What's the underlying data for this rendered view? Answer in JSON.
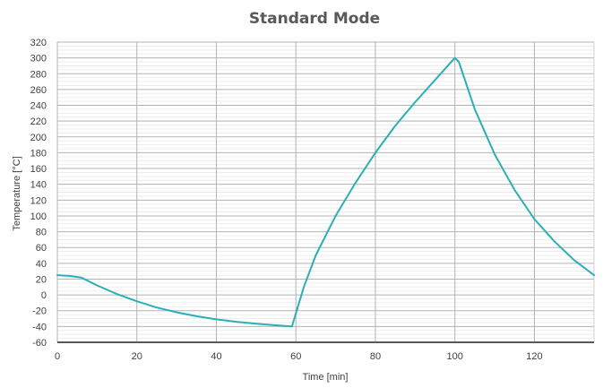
{
  "chart_data": {
    "type": "line",
    "title": "Standard Mode",
    "xlabel": "Time [min]",
    "ylabel": "Temperature [°C]",
    "xlim": [
      0,
      135
    ],
    "ylim": [
      -60,
      320
    ],
    "x_ticks": [
      0,
      20,
      40,
      60,
      80,
      100,
      120
    ],
    "y_ticks": [
      -60,
      -40,
      -20,
      0,
      20,
      40,
      60,
      80,
      100,
      120,
      140,
      160,
      180,
      200,
      220,
      240,
      260,
      280,
      300,
      320
    ],
    "grid": true,
    "legend": "none",
    "series": [
      {
        "color": "#2AAFB8",
        "points": [
          [
            0,
            25
          ],
          [
            3,
            24
          ],
          [
            6,
            22
          ],
          [
            10,
            12
          ],
          [
            15,
            1
          ],
          [
            20,
            -8
          ],
          [
            25,
            -16
          ],
          [
            30,
            -22
          ],
          [
            35,
            -27
          ],
          [
            40,
            -31
          ],
          [
            45,
            -34
          ],
          [
            50,
            -36.5
          ],
          [
            55,
            -38.5
          ],
          [
            59,
            -40
          ],
          [
            62,
            10
          ],
          [
            65,
            50
          ],
          [
            70,
            100
          ],
          [
            75,
            142
          ],
          [
            80,
            180
          ],
          [
            85,
            214
          ],
          [
            90,
            244
          ],
          [
            95,
            272
          ],
          [
            100,
            300
          ],
          [
            101,
            295
          ],
          [
            105,
            235
          ],
          [
            110,
            178
          ],
          [
            115,
            133
          ],
          [
            120,
            96
          ],
          [
            125,
            68
          ],
          [
            130,
            44
          ],
          [
            135,
            25
          ]
        ]
      }
    ]
  }
}
